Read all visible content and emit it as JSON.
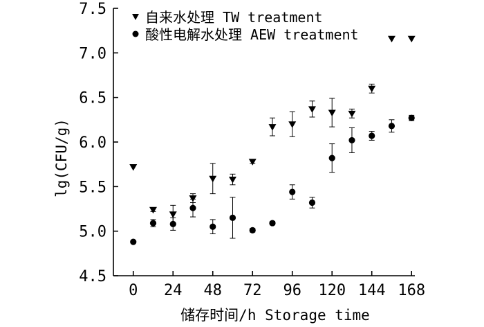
{
  "chart_data": {
    "type": "scatter",
    "xlabel": "储存时间/h Storage time",
    "ylabel": "lg(CFU/g)",
    "xlim": [
      -12,
      170
    ],
    "ylim": [
      4.5,
      7.5
    ],
    "xticks": [
      0,
      24,
      48,
      72,
      96,
      120,
      144,
      168
    ],
    "yticks": [
      4.5,
      5.0,
      5.5,
      6.0,
      6.5,
      7.0,
      7.5
    ],
    "x_tick_labels": [
      "0",
      "24",
      "48",
      "72",
      "96",
      "120",
      "144",
      "168"
    ],
    "y_tick_labels": [
      "4.5",
      "5.0",
      "5.5",
      "6.0",
      "6.5",
      "7.0",
      "7.5"
    ],
    "legend_position": "top-left",
    "grid": false,
    "series": [
      {
        "name": "自来水处理 TW treatment",
        "marker": "triangle-down",
        "color": "#000000",
        "points": [
          {
            "x": 0,
            "y": 5.72,
            "err": 0
          },
          {
            "x": 12,
            "y": 5.24,
            "err": 0.02
          },
          {
            "x": 24,
            "y": 5.19,
            "err": 0.1
          },
          {
            "x": 36,
            "y": 5.37,
            "err": 0.05
          },
          {
            "x": 48,
            "y": 5.59,
            "err": 0.17
          },
          {
            "x": 60,
            "y": 5.58,
            "err": 0.06
          },
          {
            "x": 72,
            "y": 5.78,
            "err": 0.02
          },
          {
            "x": 84,
            "y": 6.17,
            "err": 0.1
          },
          {
            "x": 96,
            "y": 6.2,
            "err": 0.14
          },
          {
            "x": 108,
            "y": 6.37,
            "err": 0.09
          },
          {
            "x": 120,
            "y": 6.33,
            "err": 0.16
          },
          {
            "x": 132,
            "y": 6.32,
            "err": 0.05
          },
          {
            "x": 144,
            "y": 6.6,
            "err": 0.05
          },
          {
            "x": 156,
            "y": 7.16,
            "err": 0
          },
          {
            "x": 168,
            "y": 7.16,
            "err": 0
          }
        ]
      },
      {
        "name": "酸性电解水处理 AEW treatment",
        "marker": "circle",
        "color": "#000000",
        "points": [
          {
            "x": 0,
            "y": 4.88,
            "err": 0
          },
          {
            "x": 12,
            "y": 5.09,
            "err": 0.04
          },
          {
            "x": 24,
            "y": 5.08,
            "err": 0.07
          },
          {
            "x": 36,
            "y": 5.26,
            "err": 0.1
          },
          {
            "x": 48,
            "y": 5.05,
            "err": 0.08
          },
          {
            "x": 60,
            "y": 5.15,
            "err": 0.23
          },
          {
            "x": 72,
            "y": 5.01,
            "err": 0.02
          },
          {
            "x": 84,
            "y": 5.09,
            "err": 0.02
          },
          {
            "x": 96,
            "y": 5.44,
            "err": 0.08
          },
          {
            "x": 108,
            "y": 5.32,
            "err": 0.06
          },
          {
            "x": 120,
            "y": 5.82,
            "err": 0.16
          },
          {
            "x": 132,
            "y": 6.02,
            "err": 0.14
          },
          {
            "x": 144,
            "y": 6.07,
            "err": 0.05
          },
          {
            "x": 156,
            "y": 6.18,
            "err": 0.07
          },
          {
            "x": 168,
            "y": 6.27,
            "err": 0.03
          }
        ]
      }
    ]
  }
}
